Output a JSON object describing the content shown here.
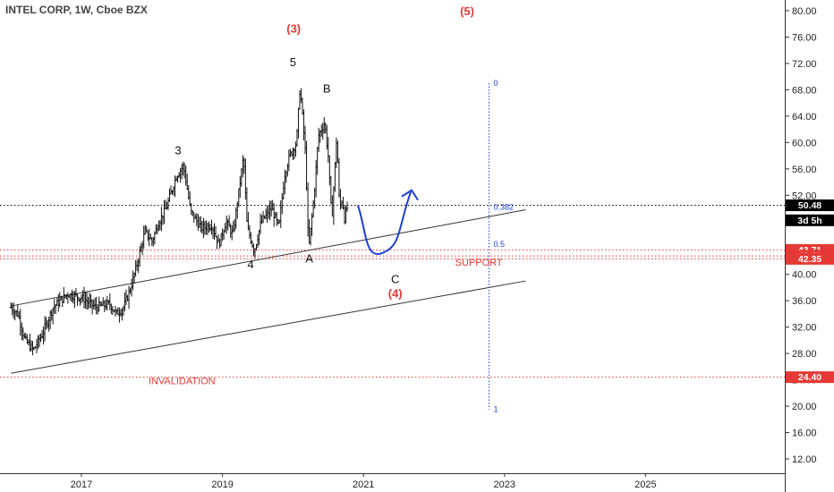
{
  "header": {
    "title": "INTEL CORP, 1W, Cboe BZX"
  },
  "chart_data": {
    "type": "candlestick",
    "title": "INTEL CORP, 1W, Cboe BZX",
    "symbol": "INTEL CORP",
    "interval": "1W",
    "exchange": "Cboe BZX",
    "y_axis": {
      "ticks": [
        12,
        16,
        20,
        24,
        28,
        32,
        36,
        40,
        44,
        48,
        52,
        56,
        60,
        64,
        68,
        72,
        76,
        80
      ],
      "labels": [
        "12.00",
        "16.00",
        "20.00",
        "24.00",
        "28.00",
        "32.00",
        "36.00",
        "40.00",
        "44.00",
        "48.00",
        "52.00",
        "56.00",
        "60.00",
        "64.00",
        "68.00",
        "72.00",
        "76.00",
        "80.00"
      ],
      "range": [
        10,
        82
      ]
    },
    "x_axis": {
      "ticks": [
        2017,
        2019,
        2021,
        2023,
        2025
      ],
      "labels": [
        "2017",
        "2019",
        "2021",
        "2023",
        "2025"
      ],
      "range": [
        2016.0,
        2026.9
      ]
    },
    "price_path": [
      [
        2016.0,
        35
      ],
      [
        2016.1,
        34
      ],
      [
        2016.2,
        30
      ],
      [
        2016.32,
        28.5
      ],
      [
        2016.45,
        31
      ],
      [
        2016.6,
        35
      ],
      [
        2016.8,
        37
      ],
      [
        2017.0,
        36.5
      ],
      [
        2017.2,
        35
      ],
      [
        2017.4,
        35.5
      ],
      [
        2017.5,
        34
      ],
      [
        2017.6,
        35
      ],
      [
        2017.7,
        38
      ],
      [
        2017.8,
        42
      ],
      [
        2017.9,
        46.5
      ],
      [
        2018.0,
        45
      ],
      [
        2018.1,
        48
      ],
      [
        2018.2,
        50
      ],
      [
        2018.35,
        55
      ],
      [
        2018.45,
        56.5
      ],
      [
        2018.55,
        49.5
      ],
      [
        2018.7,
        47
      ],
      [
        2018.85,
        47.5
      ],
      [
        2018.95,
        44.5
      ],
      [
        2019.05,
        48
      ],
      [
        2019.15,
        46
      ],
      [
        2019.3,
        58
      ],
      [
        2019.35,
        47
      ],
      [
        2019.4,
        45.5
      ],
      [
        2019.45,
        43.5
      ],
      [
        2019.55,
        48
      ],
      [
        2019.7,
        50
      ],
      [
        2019.8,
        47
      ],
      [
        2019.88,
        55
      ],
      [
        2019.95,
        58
      ],
      [
        2020.05,
        60
      ],
      [
        2020.1,
        68.5
      ],
      [
        2020.18,
        58
      ],
      [
        2020.22,
        43.5
      ],
      [
        2020.3,
        52
      ],
      [
        2020.36,
        61
      ],
      [
        2020.45,
        63
      ],
      [
        2020.5,
        58
      ],
      [
        2020.55,
        48
      ],
      [
        2020.62,
        61
      ],
      [
        2020.66,
        50
      ],
      [
        2020.7,
        51.5
      ],
      [
        2020.73,
        48.5
      ],
      [
        2020.78,
        50.5
      ]
    ],
    "current_price": 50.48,
    "price_labels": [
      {
        "value": 50.48,
        "text": "50.48",
        "bg": "#000000",
        "fg": "#ffffff"
      },
      {
        "value": 48.2,
        "text": "3d 5h",
        "bg": "#000000",
        "fg": "#ffffff"
      },
      {
        "value": 43.71,
        "text": "43.71",
        "bg": "#e53935",
        "fg": "#ffffff"
      },
      {
        "value": 42.8,
        "text": "42.80",
        "bg": "#e53935",
        "fg": "#ffffff"
      },
      {
        "value": 42.35,
        "text": "42.35",
        "bg": "#e53935",
        "fg": "#ffffff"
      },
      {
        "value": 24.4,
        "text": "24.40",
        "bg": "#e53935",
        "fg": "#ffffff"
      }
    ],
    "horizontal_levels": [
      {
        "value": 50.48,
        "color": "#000000",
        "style": "dotted"
      },
      {
        "value": 43.71,
        "color": "#e53935",
        "style": "dotted"
      },
      {
        "value": 42.8,
        "color": "#e53935",
        "style": "dotted"
      },
      {
        "value": 42.35,
        "color": "#e53935",
        "style": "dotted"
      },
      {
        "value": 24.4,
        "color": "#e53935",
        "style": "dotted"
      }
    ],
    "channel_lines": [
      {
        "from": [
          2016.0,
          35.2
        ],
        "to": [
          2023.3,
          49.8
        ]
      },
      {
        "from": [
          2016.0,
          25.0
        ],
        "to": [
          2023.3,
          39.0
        ]
      }
    ],
    "fibonacci": {
      "x": 2022.78,
      "top": 69,
      "bottom": 19.5,
      "levels": [
        {
          "label": "0",
          "value": 69
        },
        {
          "label": "0.382",
          "value": 50.2
        },
        {
          "label": "0.5",
          "value": 44.6
        },
        {
          "label": "1",
          "value": 19.5
        }
      ]
    },
    "projection": {
      "color": "#1e3fd6",
      "path": [
        [
          2020.92,
          50.5
        ],
        [
          2021.3,
          43.4
        ],
        [
          2021.67,
          52.5
        ]
      ]
    },
    "wave_labels": [
      {
        "text": "(3)",
        "x": 2020.01,
        "y": 76.7,
        "color": "#e53935"
      },
      {
        "text": "5",
        "x": 2020.0,
        "y": 71.6,
        "color": "#111111"
      },
      {
        "text": "B",
        "x": 2020.48,
        "y": 67.6,
        "color": "#111111"
      },
      {
        "text": "3",
        "x": 2018.37,
        "y": 58.2,
        "color": "#111111"
      },
      {
        "text": "4",
        "x": 2019.4,
        "y": 40.9,
        "color": "#111111"
      },
      {
        "text": "A",
        "x": 2020.23,
        "y": 41.8,
        "color": "#111111"
      },
      {
        "text": "C",
        "x": 2021.45,
        "y": 38.7,
        "color": "#111111"
      },
      {
        "text": "(4)",
        "x": 2021.45,
        "y": 36.5,
        "color": "#e53935"
      },
      {
        "text": "(5)",
        "x": 2022.47,
        "y": 79.3,
        "color": "#e53935"
      }
    ],
    "annotations": [
      {
        "text": "SUPPORT",
        "x": 2022.3,
        "y": 41.3,
        "color": "#e53935"
      },
      {
        "text": "INVALIDATION",
        "x": 2017.95,
        "y": 23.3,
        "color": "#e53935"
      }
    ]
  }
}
